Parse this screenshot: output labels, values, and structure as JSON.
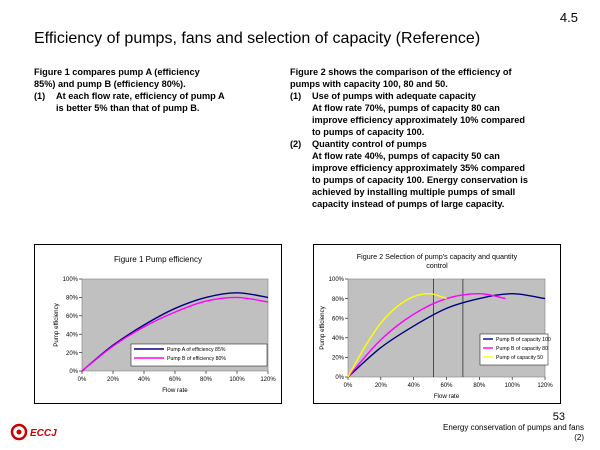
{
  "slide_number": "4.5",
  "title": "Efficiency of pumps, fans and selection of capacity (Reference)",
  "left_text": {
    "line1": "Figure 1 compares pump A (efficiency",
    "line2": "85%) and pump B (efficiency 80%).",
    "item1_num": "(1)",
    "item1_line1": "At each flow rate, efficiency of pump A",
    "item1_line2": "is better 5% than that of pump B."
  },
  "right_text": {
    "line1": "Figure 2 shows the comparison of the efficiency of",
    "line2": "pumps with capacity 100, 80 and 50.",
    "item1_num": "(1)",
    "item1_head": "Use of pumps with adequate capacity",
    "item1_l1": "At flow rate 70%, pumps of capacity 80 can",
    "item1_l2": "improve efficiency approximately 10% compared",
    "item1_l3": "to pumps of capacity 100.",
    "item2_num": "(2)",
    "item2_head": "Quantity control of pumps",
    "item2_l1": "At flow rate 40%, pumps of capacity 50 can",
    "item2_l2": "improve efficiency approximately 35% compared",
    "item2_l3": "to pumps of capacity 100. Energy conservation is",
    "item2_l4": "achieved by installing multiple pumps of small",
    "item2_l5": "capacity instead of pumps of large capacity."
  },
  "footer": {
    "page": "53",
    "line1": "Energy conservation of pumps and fans",
    "line2": "(2)",
    "logo_text": "ECCJ"
  },
  "colors": {
    "plot_bg": "#c0c0c0",
    "pump_a": "#000080",
    "pump_b": "#ff00ff",
    "pump_50": "#ffff00",
    "logo": "#cc0000"
  },
  "chart_data": [
    {
      "type": "line",
      "title": "Figure 1 Pump efficiency",
      "xlabel": "Flow rate",
      "ylabel": "Pump efficiency",
      "xlim": [
        0,
        120
      ],
      "ylim": [
        0,
        100
      ],
      "xticks": [
        "0%",
        "20%",
        "40%",
        "60%",
        "80%",
        "100%",
        "120%"
      ],
      "yticks": [
        "0%",
        "20%",
        "40%",
        "60%",
        "80%",
        "100%"
      ],
      "grid": false,
      "legend_position": "bottom-right",
      "series": [
        {
          "name": "Pump A of efficiency  85%",
          "color": "#000080",
          "x": [
            0,
            20,
            40,
            60,
            80,
            100,
            120
          ],
          "y": [
            0,
            28,
            50,
            68,
            80,
            85,
            80
          ]
        },
        {
          "name": "Pump B of efficiency  80%",
          "color": "#ff00ff",
          "x": [
            0,
            20,
            40,
            60,
            80,
            100,
            120
          ],
          "y": [
            0,
            27,
            48,
            64,
            76,
            80,
            75
          ]
        }
      ]
    },
    {
      "type": "line",
      "title": "Figure 2 Selection of pump's capacity and quantity control",
      "xlabel": "Flow rate",
      "ylabel": "Pump efficiency",
      "xlim": [
        0,
        120
      ],
      "ylim": [
        0,
        100
      ],
      "xticks": [
        "0%",
        "20%",
        "40%",
        "60%",
        "80%",
        "100%",
        "120%"
      ],
      "yticks": [
        "0%",
        "20%",
        "40%",
        "60%",
        "80%",
        "100%"
      ],
      "grid": false,
      "legend_position": "bottom-right",
      "vertical_lines_x": [
        52,
        70
      ],
      "series": [
        {
          "name": "Pump B of capacity 100",
          "color": "#000080",
          "x": [
            0,
            20,
            40,
            60,
            80,
            100,
            120
          ],
          "y": [
            0,
            30,
            52,
            70,
            80,
            85,
            80
          ]
        },
        {
          "name": "Pump B of capacity  80",
          "color": "#ff00ff",
          "x": [
            0,
            20,
            40,
            60,
            80,
            96
          ],
          "y": [
            0,
            38,
            64,
            80,
            85,
            80
          ]
        },
        {
          "name": "Pump of   capacity  50",
          "color": "#ffff00",
          "x": [
            0,
            10,
            20,
            30,
            40,
            50,
            60
          ],
          "y": [
            0,
            30,
            55,
            72,
            82,
            85,
            80
          ]
        }
      ]
    }
  ]
}
